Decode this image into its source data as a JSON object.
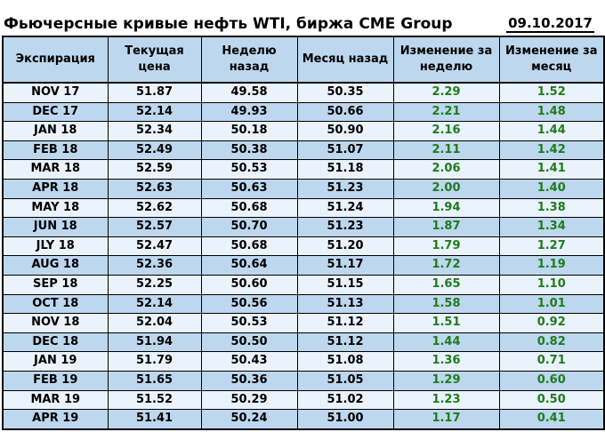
{
  "header": {
    "title": "Фьючерсные кривые нефть WTI, биржа CME Group",
    "date": "09.10.2017"
  },
  "chart_data": {
    "type": "table",
    "title": "Фьючерсные кривые нефть WTI, биржа CME Group",
    "date": "09.10.2017",
    "columns": [
      "Экспирация",
      "Текущая цена",
      "Неделю назад",
      "Месяц назад",
      "Изменение за неделю",
      "Изменение за месяц"
    ],
    "rows": [
      [
        "NOV 17",
        "51.87",
        "49.58",
        "50.35",
        "2.29",
        "1.52"
      ],
      [
        "DEC 17",
        "52.14",
        "49.93",
        "50.66",
        "2.21",
        "1.48"
      ],
      [
        "JAN 18",
        "52.34",
        "50.18",
        "50.90",
        "2.16",
        "1.44"
      ],
      [
        "FEB 18",
        "52.49",
        "50.38",
        "51.07",
        "2.11",
        "1.42"
      ],
      [
        "MAR 18",
        "52.59",
        "50.53",
        "51.18",
        "2.06",
        "1.41"
      ],
      [
        "APR 18",
        "52.63",
        "50.63",
        "51.23",
        "2.00",
        "1.40"
      ],
      [
        "MAY 18",
        "52.62",
        "50.68",
        "51.24",
        "1.94",
        "1.38"
      ],
      [
        "JUN 18",
        "52.57",
        "50.70",
        "51.23",
        "1.87",
        "1.34"
      ],
      [
        "JLY 18",
        "52.47",
        "50.68",
        "51.20",
        "1.79",
        "1.27"
      ],
      [
        "AUG 18",
        "52.36",
        "50.64",
        "51.17",
        "1.72",
        "1.19"
      ],
      [
        "SEP 18",
        "52.25",
        "50.60",
        "51.15",
        "1.65",
        "1.10"
      ],
      [
        "OCT 18",
        "52.14",
        "50.56",
        "51.13",
        "1.58",
        "1.01"
      ],
      [
        "NOV 18",
        "52.04",
        "50.53",
        "51.12",
        "1.51",
        "0.92"
      ],
      [
        "DEC 18",
        "51.94",
        "50.50",
        "51.12",
        "1.44",
        "0.82"
      ],
      [
        "JAN 19",
        "51.79",
        "50.43",
        "51.08",
        "1.36",
        "0.71"
      ],
      [
        "FEB 19",
        "51.65",
        "50.36",
        "51.05",
        "1.29",
        "0.60"
      ],
      [
        "MAR 19",
        "51.52",
        "50.29",
        "51.02",
        "1.23",
        "0.50"
      ],
      [
        "APR 19",
        "51.41",
        "50.24",
        "51.00",
        "1.17",
        "0.41"
      ]
    ]
  },
  "colors": {
    "header_bg": "#BDD7EE",
    "row_light": "#EAF3FB",
    "row_dark": "#BDD7EE",
    "positive": "#1E7B1E",
    "text": "#000000"
  }
}
